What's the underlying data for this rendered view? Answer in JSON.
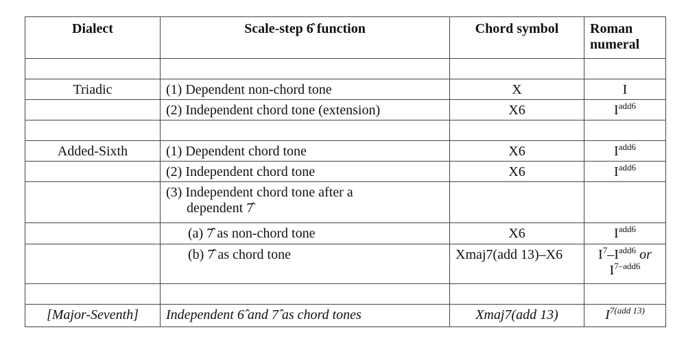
{
  "header": {
    "dialect": "Dialect",
    "function": "Scale-step 6̂ function",
    "chord": "Chord symbol",
    "roman": "Roman numeral"
  },
  "rows": {
    "triadic": {
      "dialect": "Triadic",
      "f1": "(1) Dependent non-chord tone",
      "c1": "X",
      "r1": "I",
      "f2": "(2) Independent chord tone (extension)",
      "c2": "X6",
      "r2_base": "I",
      "r2_sup": "add6"
    },
    "added_sixth": {
      "dialect": "Added-Sixth",
      "f1": "(1) Dependent chord tone",
      "c1": "X6",
      "r1_base": "I",
      "r1_sup": "add6",
      "f2": "(2) Independent chord tone",
      "c2": "X6",
      "r2_base": "I",
      "r2_sup": "add6",
      "f3_line1": "(3) Independent chord tone after a",
      "f3_line2": "dependent 7̂",
      "fa": "(a)  7̂ as non-chord tone",
      "ca": "X6",
      "ra_base": "I",
      "ra_sup": "add6",
      "fb": "(b)  7̂ as chord tone",
      "cb": "Xmaj7(add 13)–X6",
      "rb_1": "I",
      "rb_1sup": "7",
      "rb_2": "–I",
      "rb_2sup": "add6",
      "rb_or": " or",
      "rb_3": "I",
      "rb_3sup": "7–add6"
    },
    "major_seventh": {
      "dialect": "[Major-Seventh]",
      "f": "Independent 6̂ and 7̂ as chord tones",
      "c": "Xmaj7(add 13)",
      "r_base": "I",
      "r_sup": "7(add 13)"
    }
  }
}
